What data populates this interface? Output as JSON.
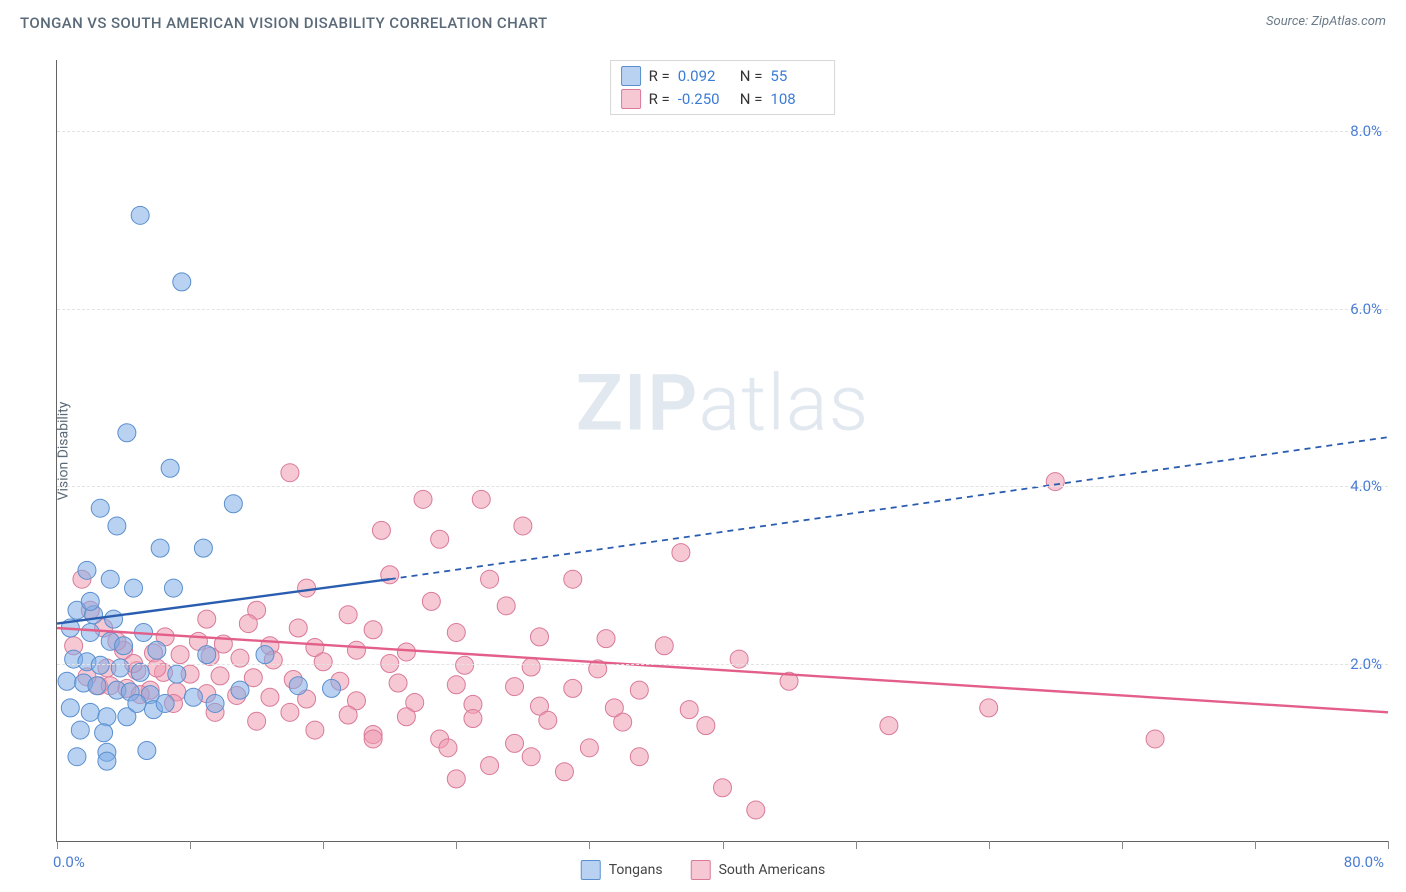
{
  "title": "TONGAN VS SOUTH AMERICAN VISION DISABILITY CORRELATION CHART",
  "source_label": "Source: ZipAtlas.com",
  "watermark": {
    "bold": "ZIP",
    "light": "atlas"
  },
  "y_axis": {
    "title": "Vision Disability",
    "ticks": [
      2.0,
      4.0,
      6.0,
      8.0
    ],
    "tick_format_suffix": "%",
    "min": 0.0,
    "max": 8.8
  },
  "x_axis": {
    "origin_label": "0.0%",
    "max_label": "80.0%",
    "min": 0.0,
    "max": 80.0,
    "tick_positions": [
      0,
      8,
      16,
      24,
      32,
      40,
      48,
      56,
      64,
      72,
      80
    ]
  },
  "gridline_color": "#e3e3e3",
  "background_color": "#ffffff",
  "axis_line_color": "#636363",
  "tick_label_color": "#4a7dd4",
  "series": {
    "tongans": {
      "label": "Tongans",
      "fill": "rgba(127,173,229,0.55)",
      "stroke": "#5a8fcf",
      "line_color": "#2a5db0",
      "marker_radius": 9,
      "R": "0.092",
      "N": "55",
      "trend": {
        "x1": 0,
        "y1": 2.45,
        "x2_solid": 20,
        "y2_solid": 2.95,
        "x2_dash": 80,
        "y2_dash": 4.55
      },
      "points": [
        [
          5.0,
          7.05
        ],
        [
          7.5,
          6.3
        ],
        [
          4.2,
          4.6
        ],
        [
          6.8,
          4.2
        ],
        [
          10.6,
          3.8
        ],
        [
          2.6,
          3.75
        ],
        [
          3.6,
          3.55
        ],
        [
          6.2,
          3.3
        ],
        [
          8.8,
          3.3
        ],
        [
          1.8,
          3.05
        ],
        [
          3.2,
          2.95
        ],
        [
          4.6,
          2.85
        ],
        [
          7.0,
          2.85
        ],
        [
          1.2,
          2.6
        ],
        [
          2.2,
          2.55
        ],
        [
          3.4,
          2.5
        ],
        [
          0.8,
          2.4
        ],
        [
          2.0,
          2.35
        ],
        [
          5.2,
          2.35
        ],
        [
          3.2,
          2.25
        ],
        [
          4.0,
          2.2
        ],
        [
          6.0,
          2.15
        ],
        [
          9.0,
          2.1
        ],
        [
          12.5,
          2.1
        ],
        [
          1.0,
          2.05
        ],
        [
          1.8,
          2.02
        ],
        [
          2.6,
          1.98
        ],
        [
          3.8,
          1.95
        ],
        [
          5.0,
          1.9
        ],
        [
          7.2,
          1.88
        ],
        [
          0.6,
          1.8
        ],
        [
          1.6,
          1.78
        ],
        [
          2.4,
          1.75
        ],
        [
          3.6,
          1.7
        ],
        [
          4.4,
          1.68
        ],
        [
          5.6,
          1.65
        ],
        [
          8.2,
          1.62
        ],
        [
          11.0,
          1.7
        ],
        [
          14.5,
          1.75
        ],
        [
          16.5,
          1.72
        ],
        [
          0.8,
          1.5
        ],
        [
          2.0,
          1.45
        ],
        [
          3.0,
          1.4
        ],
        [
          4.2,
          1.4
        ],
        [
          1.4,
          1.25
        ],
        [
          2.8,
          1.22
        ],
        [
          5.8,
          1.48
        ],
        [
          3.0,
          1.0
        ],
        [
          5.4,
          1.02
        ],
        [
          1.2,
          0.95
        ],
        [
          3.0,
          0.9
        ],
        [
          4.8,
          1.55
        ],
        [
          6.5,
          1.55
        ],
        [
          9.5,
          1.55
        ],
        [
          2.0,
          2.7
        ]
      ]
    },
    "south_americans": {
      "label": "South Americans",
      "fill": "rgba(239,154,177,0.55)",
      "stroke": "#d97a99",
      "line_color": "#e35f8a",
      "marker_radius": 9,
      "R": "-0.250",
      "N": "108",
      "trend": {
        "x1": 0,
        "y1": 2.4,
        "x2_solid": 80,
        "y2_solid": 1.45
      },
      "points": [
        [
          14.0,
          4.15
        ],
        [
          22.0,
          3.85
        ],
        [
          25.5,
          3.85
        ],
        [
          28.0,
          3.55
        ],
        [
          19.5,
          3.5
        ],
        [
          23.0,
          3.4
        ],
        [
          60.0,
          4.05
        ],
        [
          37.5,
          3.25
        ],
        [
          20.0,
          3.0
        ],
        [
          26.0,
          2.95
        ],
        [
          31.0,
          2.95
        ],
        [
          15.0,
          2.85
        ],
        [
          22.5,
          2.7
        ],
        [
          27.0,
          2.65
        ],
        [
          12.0,
          2.6
        ],
        [
          17.5,
          2.55
        ],
        [
          9.0,
          2.5
        ],
        [
          11.5,
          2.45
        ],
        [
          14.5,
          2.4
        ],
        [
          19.0,
          2.38
        ],
        [
          24.0,
          2.35
        ],
        [
          29.0,
          2.3
        ],
        [
          33.0,
          2.28
        ],
        [
          6.5,
          2.3
        ],
        [
          8.5,
          2.25
        ],
        [
          10.0,
          2.22
        ],
        [
          12.8,
          2.2
        ],
        [
          15.5,
          2.18
        ],
        [
          18.0,
          2.15
        ],
        [
          21.0,
          2.13
        ],
        [
          4.0,
          2.15
        ],
        [
          5.8,
          2.12
        ],
        [
          7.4,
          2.1
        ],
        [
          9.2,
          2.08
        ],
        [
          11.0,
          2.06
        ],
        [
          13.0,
          2.04
        ],
        [
          16.0,
          2.02
        ],
        [
          20.0,
          2.0
        ],
        [
          24.5,
          1.98
        ],
        [
          28.5,
          1.96
        ],
        [
          32.5,
          1.94
        ],
        [
          3.0,
          1.95
        ],
        [
          4.8,
          1.92
        ],
        [
          6.4,
          1.9
        ],
        [
          8.0,
          1.88
        ],
        [
          9.8,
          1.86
        ],
        [
          11.8,
          1.84
        ],
        [
          14.2,
          1.82
        ],
        [
          17.0,
          1.8
        ],
        [
          20.5,
          1.78
        ],
        [
          24.0,
          1.76
        ],
        [
          27.5,
          1.74
        ],
        [
          31.0,
          1.72
        ],
        [
          35.0,
          1.7
        ],
        [
          2.5,
          1.75
        ],
        [
          4.2,
          1.72
        ],
        [
          5.6,
          1.7
        ],
        [
          7.2,
          1.68
        ],
        [
          9.0,
          1.66
        ],
        [
          10.8,
          1.64
        ],
        [
          12.8,
          1.62
        ],
        [
          15.0,
          1.6
        ],
        [
          18.0,
          1.58
        ],
        [
          21.5,
          1.56
        ],
        [
          25.0,
          1.54
        ],
        [
          29.0,
          1.52
        ],
        [
          33.5,
          1.5
        ],
        [
          38.0,
          1.48
        ],
        [
          14.0,
          1.45
        ],
        [
          17.5,
          1.42
        ],
        [
          21.0,
          1.4
        ],
        [
          25.0,
          1.38
        ],
        [
          29.5,
          1.36
        ],
        [
          34.0,
          1.34
        ],
        [
          39.0,
          1.3
        ],
        [
          50.0,
          1.3
        ],
        [
          66.0,
          1.15
        ],
        [
          56.0,
          1.5
        ],
        [
          44.0,
          1.8
        ],
        [
          41.0,
          2.05
        ],
        [
          36.5,
          2.2
        ],
        [
          19.0,
          1.2
        ],
        [
          23.0,
          1.15
        ],
        [
          27.5,
          1.1
        ],
        [
          32.0,
          1.05
        ],
        [
          26.0,
          0.85
        ],
        [
          30.5,
          0.78
        ],
        [
          35.0,
          0.95
        ],
        [
          40.0,
          0.6
        ],
        [
          42.0,
          0.35
        ],
        [
          24.0,
          0.7
        ],
        [
          1.5,
          2.95
        ],
        [
          2.0,
          2.6
        ],
        [
          2.8,
          2.4
        ],
        [
          3.6,
          2.25
        ],
        [
          1.0,
          2.2
        ],
        [
          4.6,
          2.0
        ],
        [
          6.0,
          1.95
        ],
        [
          1.8,
          1.85
        ],
        [
          3.2,
          1.75
        ],
        [
          5.0,
          1.65
        ],
        [
          7.0,
          1.55
        ],
        [
          9.5,
          1.45
        ],
        [
          12.0,
          1.35
        ],
        [
          15.5,
          1.25
        ],
        [
          19.0,
          1.15
        ],
        [
          23.5,
          1.05
        ],
        [
          28.5,
          0.95
        ]
      ]
    }
  },
  "stats_box": {
    "rows": [
      {
        "swatch_key": "tongans",
        "R_label": "R =",
        "R_val": "0.092",
        "N_label": "N =",
        "N_val": "55"
      },
      {
        "swatch_key": "south_americans",
        "R_label": "R =",
        "R_val": "-0.250",
        "N_label": "N =",
        "N_val": "108"
      }
    ]
  },
  "bottom_legend": [
    {
      "swatch_key": "tongans",
      "label": "Tongans"
    },
    {
      "swatch_key": "south_americans",
      "label": "South Americans"
    }
  ]
}
